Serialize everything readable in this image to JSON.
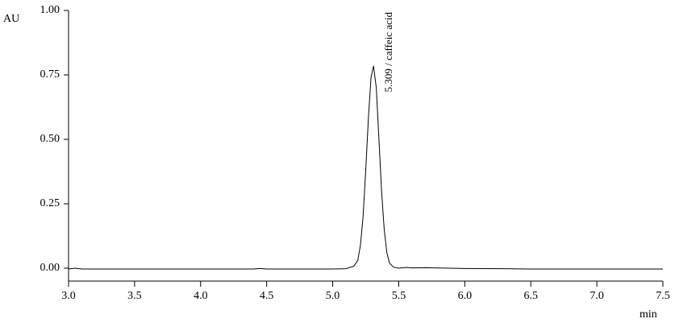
{
  "chart_data": {
    "type": "line",
    "y_label": "AU",
    "x_label": "min",
    "annotations": [
      {
        "x": 5.309,
        "text": "5.309 / caffeic acid"
      }
    ],
    "x": [
      3.0,
      3.05,
      3.1,
      3.5,
      4.0,
      4.4,
      4.45,
      4.5,
      5.0,
      5.1,
      5.16,
      5.19,
      5.21,
      5.23,
      5.25,
      5.27,
      5.29,
      5.309,
      5.33,
      5.35,
      5.37,
      5.39,
      5.41,
      5.43,
      5.46,
      5.5,
      5.56,
      5.6,
      5.7,
      6.0,
      6.3,
      6.5,
      7.0,
      7.5
    ],
    "series": [
      {
        "name": "AU",
        "color": "#000000",
        "values": [
          -0.003,
          0.0,
          -0.003,
          -0.003,
          -0.003,
          -0.003,
          -0.001,
          -0.003,
          -0.003,
          -0.002,
          0.008,
          0.03,
          0.09,
          0.2,
          0.38,
          0.58,
          0.74,
          0.785,
          0.7,
          0.5,
          0.3,
          0.15,
          0.06,
          0.02,
          0.004,
          0.0,
          0.003,
          0.001,
          0.002,
          -0.001,
          -0.002,
          -0.003,
          -0.003,
          -0.003
        ]
      }
    ],
    "xlim": [
      3.0,
      7.5
    ],
    "xticks": [
      {
        "value": 3.0,
        "label": "3.0"
      },
      3.5,
      {
        "value": 4.0,
        "label": "4.0"
      },
      4.5,
      {
        "value": 5.0,
        "label": "5.0"
      },
      5.5,
      {
        "value": 6.0,
        "label": "6.0"
      },
      6.5,
      {
        "value": 7.0,
        "label": "7.0"
      },
      7.5
    ],
    "ylim": [
      -0.05,
      1.0
    ],
    "yticks": [
      {
        "value": 0,
        "label": "0.00"
      },
      {
        "value": 0.25,
        "label": "0.25"
      },
      {
        "value": 0.5,
        "label": "0.50"
      },
      {
        "value": 0.75,
        "label": "0.75"
      },
      {
        "value": 1,
        "label": "1.00"
      }
    ],
    "grid": false
  }
}
